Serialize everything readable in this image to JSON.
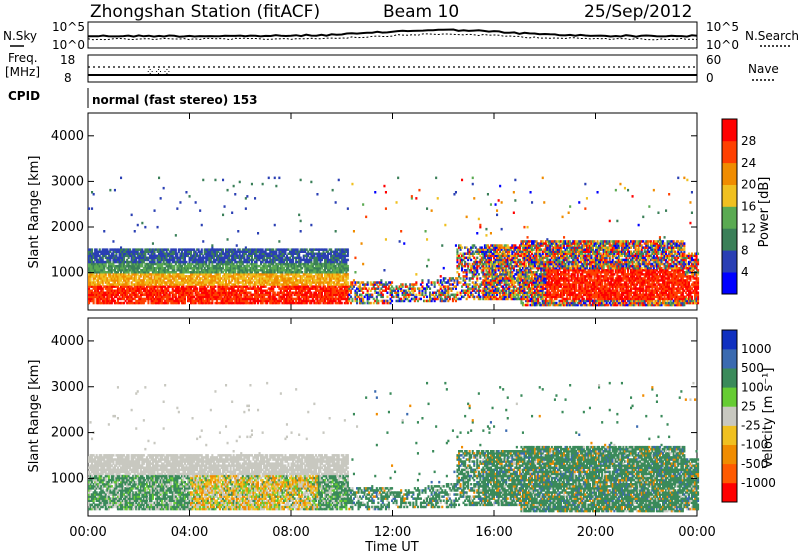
{
  "header": {
    "station": "Zhongshan Station (fitACF)",
    "beam": "Beam 10",
    "date": "25/Sep/2012"
  },
  "panels": {
    "nsky": {
      "left_label": "N.Sky",
      "right_label": "N.Search",
      "left_ticks": [
        "10^5",
        "10^0"
      ],
      "right_ticks": [
        "10^5",
        "10^0"
      ]
    },
    "freq": {
      "left_label_1": "Freq.",
      "left_label_2": "[MHz]",
      "right_label": "Nave",
      "left_ticks": [
        "18",
        "8"
      ],
      "right_ticks": [
        "60",
        "0"
      ]
    },
    "cpid": {
      "label": "CPID",
      "value": "normal (fast stereo) 153"
    }
  },
  "chart_data": [
    {
      "type": "heatmap",
      "name": "power",
      "ylabel": "Slant Range [km]",
      "xlabel": "",
      "x_range_hours": [
        0,
        24
      ],
      "ylim": [
        180,
        4500
      ],
      "yticks": [
        1000,
        2000,
        3000,
        4000
      ],
      "xticks": [
        0,
        4,
        8,
        12,
        16,
        20,
        24
      ],
      "colorbar": {
        "label": "Power [dB]",
        "ticks": [
          "28",
          "24",
          "20",
          "16",
          "12",
          "8",
          "4"
        ],
        "colors": [
          "#0000ff",
          "#2a3fb4",
          "#3a7f58",
          "#5aaa52",
          "#f0c020",
          "#f08c00",
          "#ff4000",
          "#ff0000"
        ]
      }
    },
    {
      "type": "heatmap",
      "name": "velocity",
      "ylabel": "Slant Range [km]",
      "xlabel": "Time UT",
      "x_range_hours": [
        0,
        24
      ],
      "ylim": [
        180,
        4500
      ],
      "yticks": [
        1000,
        2000,
        3000,
        4000
      ],
      "xticks": [
        0,
        4,
        8,
        12,
        16,
        20,
        24
      ],
      "colorbar": {
        "label": "Velocity [m s⁻¹]",
        "ticks": [
          "1000",
          "500",
          "100",
          "25",
          "-25",
          "-100",
          "-500",
          "-1000"
        ],
        "colors": [
          "#ff0000",
          "#ff5a00",
          "#f08c00",
          "#f0c020",
          "#c8c8c0",
          "#66cc33",
          "#3a8a5a",
          "#3a6ab0",
          "#1030c0"
        ]
      }
    }
  ],
  "xaxis": {
    "tick_labels": [
      "00:00",
      "04:00",
      "08:00",
      "12:00",
      "16:00",
      "20:00",
      "00:00"
    ],
    "label": "Time UT"
  }
}
